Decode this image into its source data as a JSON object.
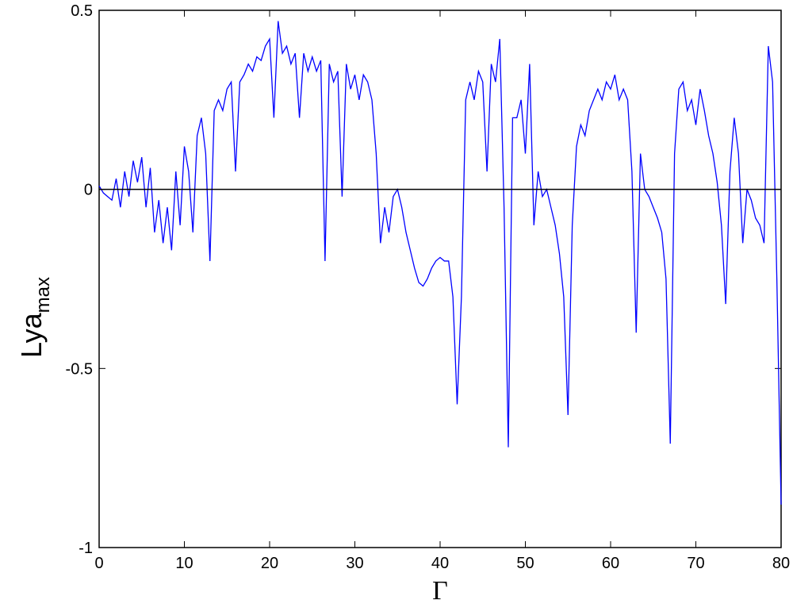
{
  "chart_data": {
    "type": "line",
    "xlabel": "Γ",
    "ylabel": "Lya",
    "ylabel_subscript": "max",
    "xlim": [
      0,
      80
    ],
    "ylim": [
      -1,
      0.5
    ],
    "xticks": [
      0,
      10,
      20,
      30,
      40,
      50,
      60,
      70,
      80
    ],
    "yticks": [
      -1,
      -0.5,
      0,
      0.5
    ],
    "hline": 0,
    "x": [
      0,
      0.5,
      1,
      1.5,
      2,
      2.5,
      3,
      3.5,
      4,
      4.5,
      5,
      5.5,
      6,
      6.5,
      7,
      7.5,
      8,
      8.5,
      9,
      9.5,
      10,
      10.5,
      11,
      11.5,
      12,
      12.5,
      13,
      13.5,
      14,
      14.5,
      15,
      15.5,
      16,
      16.5,
      17,
      17.5,
      18,
      18.5,
      19,
      19.5,
      20,
      20.5,
      21,
      21.5,
      22,
      22.5,
      23,
      23.5,
      24,
      24.5,
      25,
      25.5,
      26,
      26.5,
      27,
      27.5,
      28,
      28.5,
      29,
      29.5,
      30,
      30.5,
      31,
      31.5,
      32,
      32.5,
      33,
      33.5,
      34,
      34.5,
      35,
      35.5,
      36,
      36.5,
      37,
      37.5,
      38,
      38.5,
      39,
      39.5,
      40,
      40.5,
      41,
      41.5,
      42,
      42.5,
      43,
      43.5,
      44,
      44.5,
      45,
      45.5,
      46,
      46.5,
      47,
      47.5,
      48,
      48.5,
      49,
      49.5,
      50,
      50.5,
      51,
      51.5,
      52,
      52.5,
      53,
      53.5,
      54,
      54.5,
      55,
      55.5,
      56,
      56.5,
      57,
      57.5,
      58,
      58.5,
      59,
      59.5,
      60,
      60.5,
      61,
      61.5,
      62,
      62.5,
      63,
      63.5,
      64,
      64.5,
      65,
      65.5,
      66,
      66.5,
      67,
      67.5,
      68,
      68.5,
      69,
      69.5,
      70,
      70.5,
      71,
      71.5,
      72,
      72.5,
      73,
      73.5,
      74,
      74.5,
      75,
      75.5,
      76,
      76.5,
      77,
      77.5,
      78,
      78.5,
      79,
      79.5,
      80
    ],
    "series": [
      {
        "color": "#0000ff",
        "values": [
          0.01,
          -0.01,
          -0.02,
          -0.03,
          0.03,
          -0.05,
          0.05,
          -0.02,
          0.08,
          0.02,
          0.09,
          -0.05,
          0.06,
          -0.12,
          -0.03,
          -0.15,
          -0.05,
          -0.17,
          0.05,
          -0.1,
          0.12,
          0.05,
          -0.12,
          0.15,
          0.2,
          0.1,
          -0.2,
          0.22,
          0.25,
          0.22,
          0.28,
          0.3,
          0.05,
          0.3,
          0.32,
          0.35,
          0.33,
          0.37,
          0.36,
          0.4,
          0.42,
          0.2,
          0.47,
          0.38,
          0.4,
          0.35,
          0.38,
          0.2,
          0.38,
          0.33,
          0.37,
          0.33,
          0.36,
          -0.2,
          0.35,
          0.3,
          0.33,
          -0.02,
          0.35,
          0.28,
          0.32,
          0.25,
          0.32,
          0.3,
          0.25,
          0.1,
          -0.15,
          -0.05,
          -0.12,
          -0.02,
          0,
          -0.05,
          -0.12,
          -0.17,
          -0.22,
          -0.26,
          -0.27,
          -0.25,
          -0.22,
          -0.2,
          -0.19,
          -0.2,
          -0.2,
          -0.3,
          -0.6,
          -0.3,
          0.25,
          0.3,
          0.25,
          0.33,
          0.3,
          0.05,
          0.35,
          0.3,
          0.42,
          -0.05,
          -0.72,
          0.2,
          0.2,
          0.25,
          0.1,
          0.35,
          -0.1,
          0.05,
          -0.02,
          0,
          -0.05,
          -0.1,
          -0.18,
          -0.3,
          -0.63,
          -0.1,
          0.12,
          0.18,
          0.15,
          0.22,
          0.25,
          0.28,
          0.25,
          0.3,
          0.28,
          0.32,
          0.25,
          0.28,
          0.25,
          0.05,
          -0.4,
          0.1,
          0,
          -0.02,
          -0.05,
          -0.08,
          -0.12,
          -0.25,
          -0.71,
          0.1,
          0.28,
          0.3,
          0.22,
          0.25,
          0.18,
          0.28,
          0.22,
          0.15,
          0.1,
          0.02,
          -0.1,
          -0.32,
          0.05,
          0.2,
          0.1,
          -0.15,
          0,
          -0.03,
          -0.08,
          -0.1,
          -0.15,
          0.4,
          0.3,
          -0.25,
          -0.88
        ]
      }
    ]
  }
}
